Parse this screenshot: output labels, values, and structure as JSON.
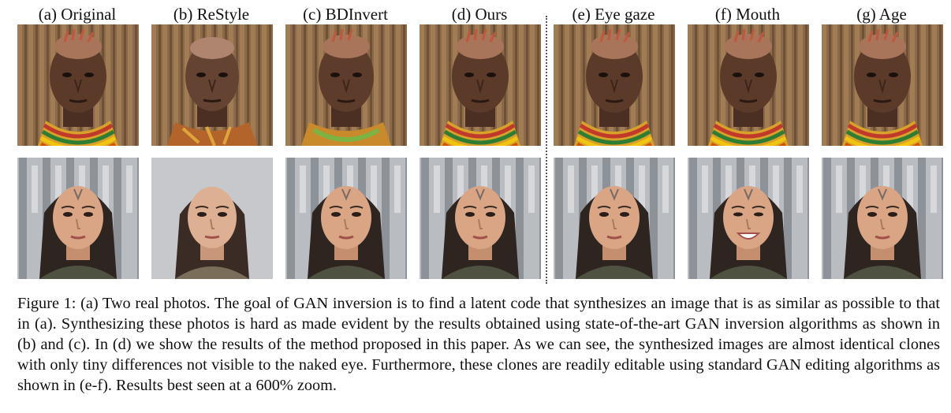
{
  "figure": {
    "columns": [
      {
        "key": "a",
        "label": "(a) Original"
      },
      {
        "key": "b",
        "label": "(b) ReStyle"
      },
      {
        "key": "c",
        "label": "(c) BDInvert"
      },
      {
        "key": "d",
        "label": "(d) Ours"
      },
      {
        "key": "e",
        "label": "(e) Eye gaze"
      },
      {
        "key": "f",
        "label": "(f) Mouth"
      },
      {
        "key": "g",
        "label": "(g) Age"
      }
    ],
    "rows": [
      {
        "subject": "woman with beaded necklaces",
        "background": "wooden fence"
      },
      {
        "subject": "woman with dark hair",
        "background": "city street"
      }
    ],
    "caption": "Figure 1: (a) Two real photos. The goal of GAN inversion is to find a latent code that synthesizes an image that is as similar as possible to that in (a). Synthesizing these photos is hard as made evident by the results obtained using state-of-the-art GAN inversion algorithms as shown in (b) and (c). In (d) we show the results of the method proposed in this paper. As we can see, the synthesized images are almost identical clones with only tiny differences not visible to the naked eye. Furthermore, these clones are readily editable using standard GAN editing algorithms as shown in (e-f). Results best seen at a 600% zoom."
  }
}
